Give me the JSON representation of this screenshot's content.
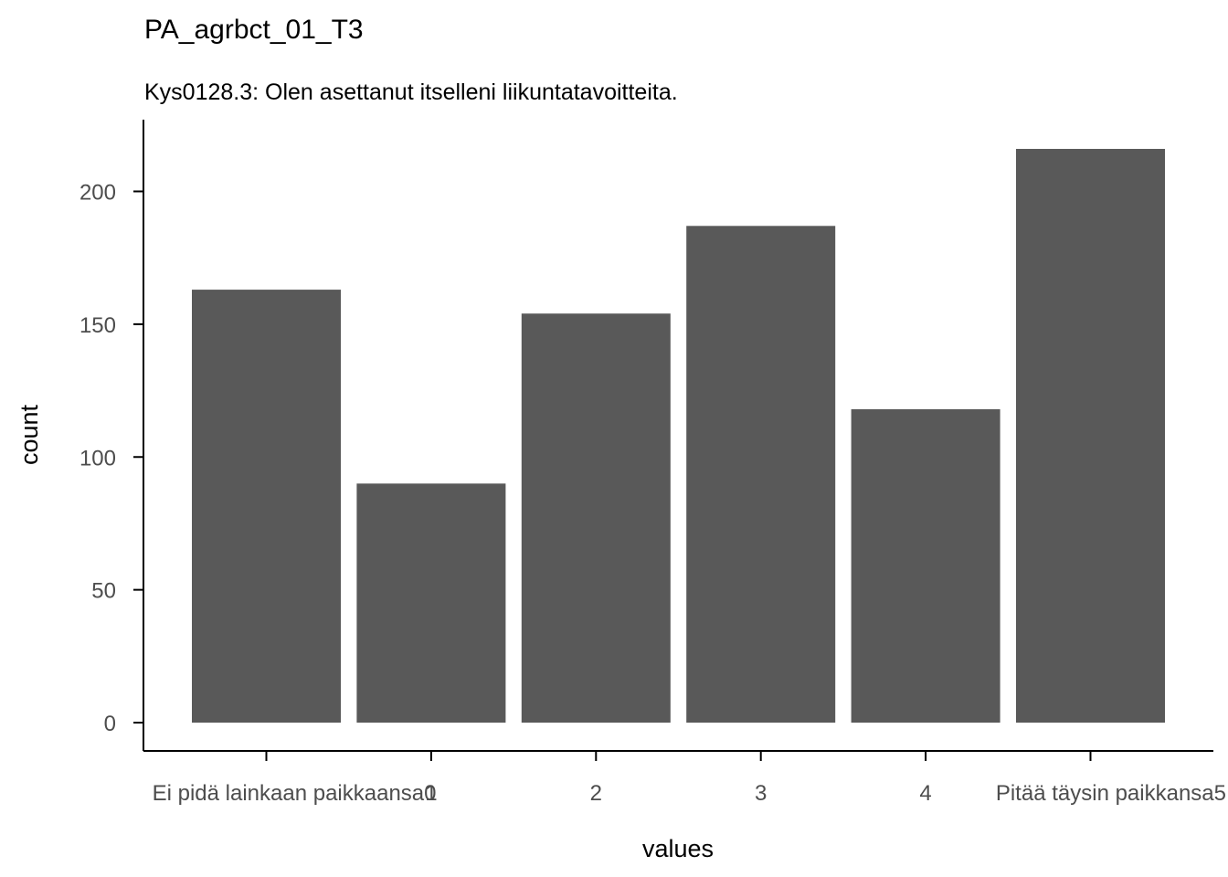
{
  "chart_data": {
    "type": "bar",
    "title": "PA_agrbct_01_T3",
    "subtitle": "Kys0128.3: Olen asettanut itselleni liikuntatavoitteita.",
    "xlabel": "values",
    "ylabel": "count",
    "categories": [
      "Ei pidä lainkaan paikkaansa0",
      "1",
      "2",
      "3",
      "4",
      "Pitää täysin paikkansa5"
    ],
    "values": [
      163,
      90,
      154,
      187,
      118,
      216
    ],
    "ylim": [
      0,
      225
    ],
    "yticks": [
      0,
      50,
      100,
      150,
      200
    ],
    "ytick_labels": [
      "0",
      "50",
      "100",
      "150",
      "200"
    ],
    "grid": false,
    "legend": "none",
    "bar_color": "#595959",
    "axis_color": "#000000",
    "tick_label_color": "#4d4d4d"
  }
}
